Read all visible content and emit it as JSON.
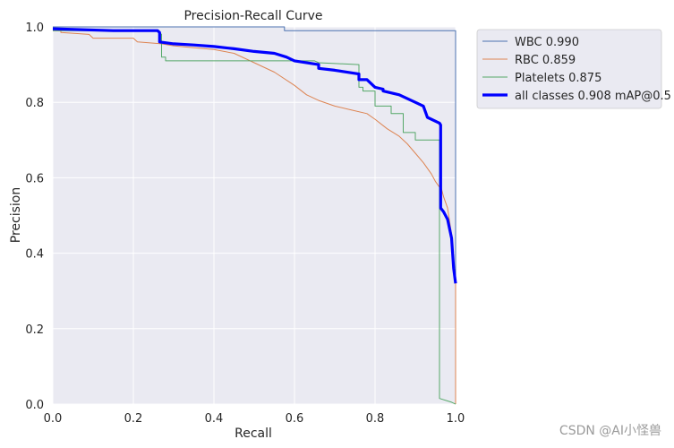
{
  "chart_data": {
    "type": "line",
    "title": "Precision-Recall Curve",
    "xlabel": "Recall",
    "ylabel": "Precision",
    "xlim": [
      0,
      1
    ],
    "ylim": [
      0,
      1
    ],
    "xticks": [
      "0.0",
      "0.2",
      "0.4",
      "0.6",
      "0.8",
      "1.0"
    ],
    "yticks": [
      "0.0",
      "0.2",
      "0.4",
      "0.6",
      "0.8",
      "1.0"
    ],
    "grid": true,
    "legend_position": "outside-top-right",
    "series": [
      {
        "name": "WBC 0.990",
        "color": "#4c72b0",
        "width": 1,
        "x": [
          0,
          0.575,
          0.575,
          0.99,
          1.0,
          1.0
        ],
        "y": [
          1.0,
          1.0,
          0.99,
          0.99,
          0.99,
          0.0
        ]
      },
      {
        "name": "RBC 0.859",
        "color": "#dd8452",
        "width": 1,
        "x": [
          0,
          0.02,
          0.02,
          0.09,
          0.1,
          0.2,
          0.21,
          0.27,
          0.3,
          0.35,
          0.4,
          0.45,
          0.5,
          0.55,
          0.6,
          0.63,
          0.66,
          0.7,
          0.74,
          0.78,
          0.8,
          0.83,
          0.86,
          0.88,
          0.9,
          0.92,
          0.94,
          0.95,
          0.96,
          0.965,
          0.97,
          0.98,
          0.99,
          1.0,
          1.0
        ],
        "y": [
          0.99,
          0.99,
          0.985,
          0.98,
          0.97,
          0.97,
          0.96,
          0.955,
          0.95,
          0.945,
          0.94,
          0.93,
          0.905,
          0.88,
          0.845,
          0.82,
          0.805,
          0.79,
          0.78,
          0.77,
          0.755,
          0.73,
          0.71,
          0.69,
          0.665,
          0.64,
          0.61,
          0.59,
          0.575,
          0.57,
          0.55,
          0.52,
          0.45,
          0.32,
          0.0
        ]
      },
      {
        "name": "Platelets 0.875",
        "color": "#55a868",
        "width": 1,
        "x": [
          0,
          0.26,
          0.27,
          0.27,
          0.28,
          0.28,
          0.65,
          0.66,
          0.76,
          0.76,
          0.77,
          0.77,
          0.8,
          0.8,
          0.84,
          0.84,
          0.87,
          0.87,
          0.9,
          0.9,
          0.93,
          0.93,
          0.96,
          0.96,
          0.99,
          1.0,
          1.0
        ],
        "y": [
          0.99,
          0.99,
          0.98,
          0.92,
          0.92,
          0.91,
          0.91,
          0.905,
          0.9,
          0.84,
          0.84,
          0.83,
          0.83,
          0.79,
          0.79,
          0.77,
          0.77,
          0.72,
          0.72,
          0.7,
          0.7,
          0.7,
          0.7,
          0.015,
          0.005,
          0.0,
          0.0
        ]
      },
      {
        "name": "all classes 0.908 mAP@0.5",
        "color": "#0000ff",
        "width": 3.2,
        "x": [
          0,
          0.15,
          0.26,
          0.265,
          0.265,
          0.3,
          0.35,
          0.4,
          0.45,
          0.5,
          0.55,
          0.58,
          0.6,
          0.66,
          0.66,
          0.7,
          0.76,
          0.76,
          0.78,
          0.8,
          0.82,
          0.82,
          0.86,
          0.9,
          0.92,
          0.93,
          0.96,
          0.963,
          0.963,
          0.97,
          0.98,
          0.99,
          0.995,
          1.0
        ],
        "y": [
          0.995,
          0.99,
          0.99,
          0.985,
          0.96,
          0.955,
          0.952,
          0.948,
          0.942,
          0.935,
          0.93,
          0.92,
          0.91,
          0.9,
          0.89,
          0.885,
          0.875,
          0.86,
          0.86,
          0.84,
          0.835,
          0.83,
          0.82,
          0.8,
          0.79,
          0.76,
          0.745,
          0.74,
          0.52,
          0.51,
          0.49,
          0.44,
          0.36,
          0.32
        ]
      }
    ]
  },
  "watermark": "CSDN @AI小怪兽"
}
